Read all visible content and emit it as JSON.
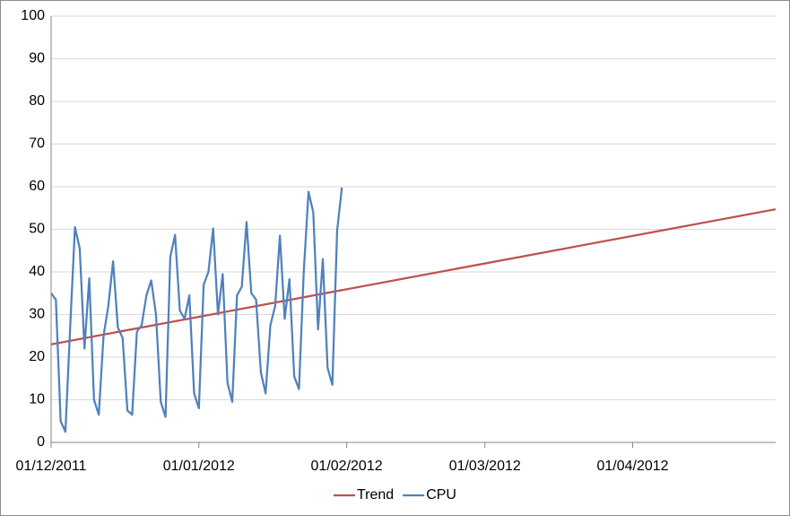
{
  "chart_data": {
    "type": "line",
    "xlim": [
      "01/12/2011",
      "01/05/2012"
    ],
    "xticks": [
      "01/12/2011",
      "01/01/2012",
      "01/02/2012",
      "01/03/2012",
      "01/04/2012"
    ],
    "ylim": [
      0,
      100
    ],
    "yticks": [
      0,
      10,
      20,
      30,
      40,
      50,
      60,
      70,
      80,
      90,
      100
    ],
    "grid": true,
    "legend": "bottom",
    "series": [
      {
        "name": "Trend",
        "color": "#c0504d",
        "x": [
          "01/12/2011",
          "01/05/2012"
        ],
        "values": [
          23,
          54.7
        ]
      },
      {
        "name": "CPU",
        "color": "#4f81bd",
        "x": [
          "01/12/2011",
          "02/12/2011",
          "03/12/2011",
          "04/12/2011",
          "05/12/2011",
          "06/12/2011",
          "07/12/2011",
          "08/12/2011",
          "09/12/2011",
          "10/12/2011",
          "11/12/2011",
          "12/12/2011",
          "13/12/2011",
          "14/12/2011",
          "15/12/2011",
          "16/12/2011",
          "17/12/2011",
          "18/12/2011",
          "19/12/2011",
          "20/12/2011",
          "21/12/2011",
          "22/12/2011",
          "23/12/2011",
          "24/12/2011",
          "25/12/2011",
          "26/12/2011",
          "27/12/2011",
          "28/12/2011",
          "29/12/2011",
          "30/12/2011",
          "31/12/2011",
          "01/01/2012",
          "02/01/2012",
          "03/01/2012",
          "04/01/2012",
          "05/01/2012",
          "06/01/2012",
          "07/01/2012",
          "08/01/2012",
          "09/01/2012",
          "10/01/2012",
          "11/01/2012",
          "12/01/2012",
          "13/01/2012",
          "14/01/2012",
          "15/01/2012",
          "16/01/2012",
          "17/01/2012",
          "18/01/2012",
          "19/01/2012",
          "20/01/2012",
          "21/01/2012",
          "22/01/2012",
          "23/01/2012",
          "24/01/2012",
          "25/01/2012",
          "26/01/2012",
          "27/01/2012",
          "28/01/2012",
          "29/01/2012",
          "30/01/2012",
          "31/01/2012"
        ],
        "values": [
          35,
          33.5,
          5,
          2.5,
          27,
          50.5,
          45.5,
          22,
          38.5,
          10,
          6.5,
          25,
          32,
          42.5,
          27,
          24.5,
          7.5,
          6.5,
          26,
          27.5,
          34.5,
          38,
          30,
          9.5,
          6,
          43.5,
          48.7,
          31,
          29,
          34.5,
          11.5,
          8,
          37,
          40,
          50.2,
          30,
          39.5,
          14,
          9.5,
          34.5,
          36.5,
          51.7,
          35,
          33.5,
          16.5,
          11.5,
          27.5,
          32,
          48.5,
          29,
          38.3,
          15.5,
          12.5,
          40,
          58.8,
          54,
          26.5,
          43,
          17.5,
          13.5,
          49.7,
          59.8
        ]
      }
    ]
  }
}
